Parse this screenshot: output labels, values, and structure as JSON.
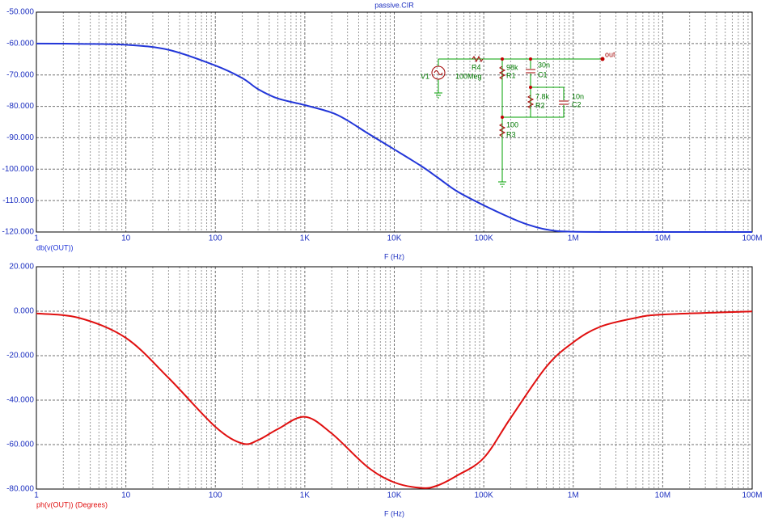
{
  "chart_data": [
    {
      "type": "line",
      "title": "passive.CIR",
      "xlabel": "F (Hz)",
      "xscale": "log",
      "grid": true,
      "x": [
        1,
        3,
        10,
        30,
        100,
        200,
        300,
        500,
        1000,
        2000,
        3000,
        5000,
        10000,
        20000,
        30000,
        50000,
        100000,
        200000,
        300000,
        500000,
        1000000,
        10000000,
        100000000
      ],
      "series": [
        {
          "name": "db(v(OUT))",
          "color": "#2236d8",
          "values": [
            -60,
            -60.1,
            -60.4,
            -62,
            -67,
            -71,
            -74.5,
            -77.5,
            -79.6,
            -82,
            -84.5,
            -88.5,
            -93.7,
            -99,
            -102.5,
            -107,
            -111.5,
            -115.5,
            -117.5,
            -119.2,
            -119.9,
            -120,
            -120
          ]
        }
      ],
      "xlim": [
        1,
        100000000
      ],
      "xticks": [
        1,
        10,
        100,
        {
          "value": 1000,
          "label": "1K"
        },
        {
          "value": 10000,
          "label": "10K"
        },
        {
          "value": 100000,
          "label": "100K"
        },
        {
          "value": 1000000,
          "label": "1M"
        },
        {
          "value": 10000000,
          "label": "10M"
        },
        {
          "value": 100000000,
          "label": "100M"
        }
      ],
      "ylim": [
        -120,
        -50
      ],
      "yticks": [
        {
          "value": -50,
          "label": "-50.000"
        },
        {
          "value": -60,
          "label": "-60.000"
        },
        {
          "value": -70,
          "label": "-70.000"
        },
        {
          "value": -80,
          "label": "-80.000"
        },
        {
          "value": -90,
          "label": "-90.000"
        },
        {
          "value": -100,
          "label": "-100.000"
        },
        {
          "value": -110,
          "label": "-110.000"
        },
        {
          "value": -120,
          "label": "-120.000"
        }
      ],
      "annotations": [
        "V1",
        "R4",
        "100Meg",
        "98k",
        "R1",
        "30n",
        "C1",
        "7.8k",
        "R2",
        "10n",
        "C2",
        "100",
        "R3",
        "out"
      ]
    },
    {
      "type": "line",
      "xlabel": "F (Hz)",
      "xscale": "log",
      "grid": true,
      "x": [
        1,
        3,
        10,
        30,
        100,
        200,
        300,
        500,
        1000,
        2000,
        5000,
        10000,
        20000,
        30000,
        50000,
        100000,
        200000,
        500000,
        1000000,
        2000000,
        5000000,
        10000000,
        100000000
      ],
      "series": [
        {
          "name": "ph(v(OUT)) (Degrees)",
          "color": "#e01010",
          "values": [
            -1,
            -3,
            -12,
            -30,
            -52,
            -59.5,
            -58,
            -53,
            -47.5,
            -55,
            -70,
            -77,
            -79.5,
            -78.5,
            -74,
            -66,
            -48,
            -25,
            -14,
            -7,
            -3,
            -1.5,
            -0.1
          ]
        }
      ],
      "xlim": [
        1,
        100000000
      ],
      "xticks": [
        1,
        10,
        100,
        {
          "value": 1000,
          "label": "1K"
        },
        {
          "value": 10000,
          "label": "10K"
        },
        {
          "value": 100000,
          "label": "100K"
        },
        {
          "value": 1000000,
          "label": "1M"
        },
        {
          "value": 10000000,
          "label": "10M"
        },
        {
          "value": 100000000,
          "label": "100M"
        }
      ],
      "ylim": [
        -80,
        20
      ],
      "yticks": [
        {
          "value": 20,
          "label": "20.000"
        },
        {
          "value": 0,
          "label": "0.000"
        },
        {
          "value": -20,
          "label": "-20.000"
        },
        {
          "value": -40,
          "label": "-40.000"
        },
        {
          "value": -60,
          "label": "-60.000"
        },
        {
          "value": -80,
          "label": "-80.000"
        }
      ]
    }
  ]
}
